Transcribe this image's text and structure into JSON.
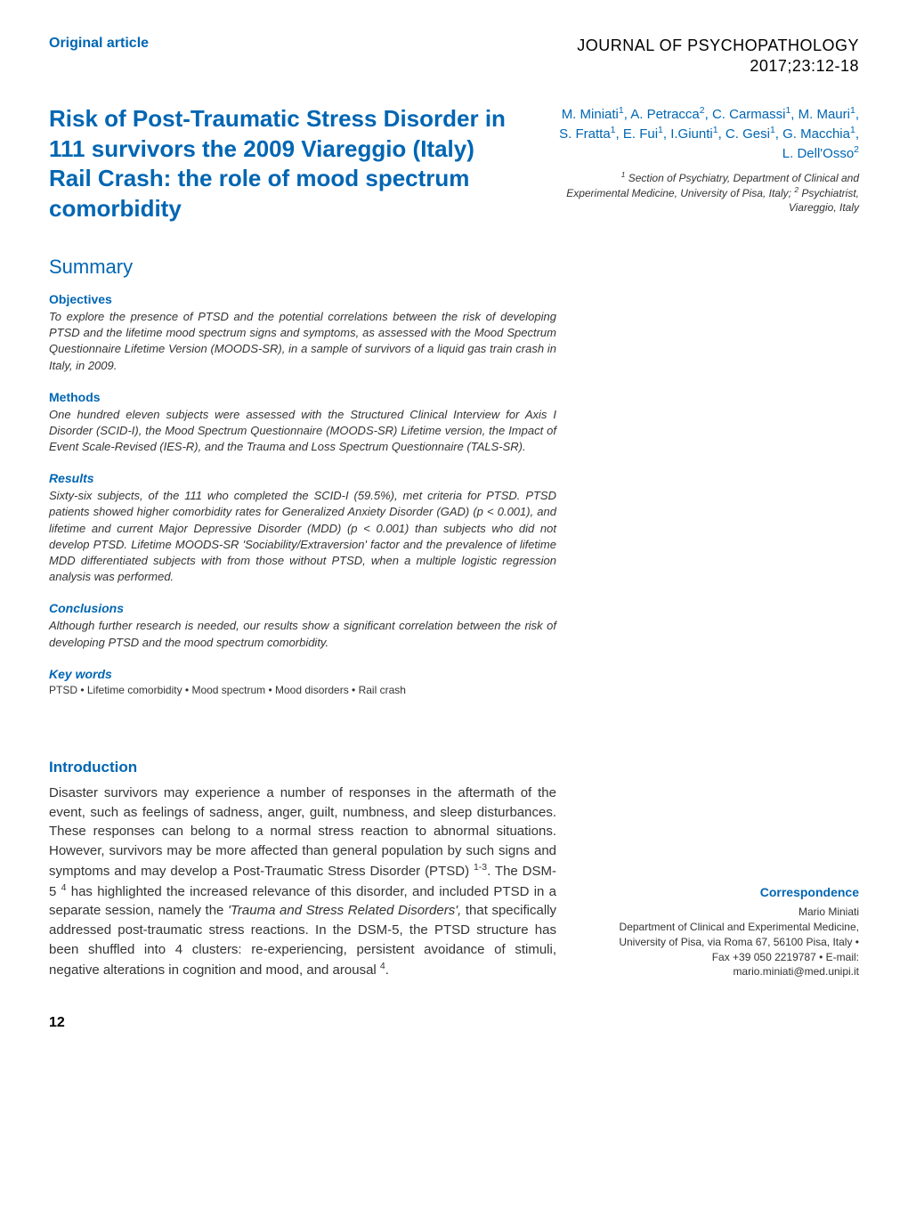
{
  "header": {
    "article_type": "Original article",
    "journal_name": "JOURNAL OF PSYCHOPATHOLOGY",
    "journal_issue": "2017;23:12-18"
  },
  "title": "Risk of Post-Traumatic Stress Disorder in 111 survivors the 2009 Viareggio (Italy) Rail Crash: the role of mood spectrum comorbidity",
  "authors": "M. Miniati¹, A. Petracca², C. Carmassi¹, M. Mauri¹, S. Fratta¹, E. Fui¹, I.Giunti¹, C. Gesi¹, G. Macchia¹, L. Dell'Osso²",
  "affiliations": "¹ Section of Psychiatry, Department of Clinical and Experimental Medicine, University of Pisa, Italy; ² Psychiatrist, Viareggio, Italy",
  "summary": {
    "heading": "Summary",
    "objectives": {
      "title": "Objectives",
      "text": "To explore the presence of PTSD and the potential correlations between the risk of developing PTSD and the lifetime mood spectrum signs and symptoms, as assessed with the Mood Spectrum Questionnaire Lifetime Version (MOODS-SR), in a sample of survivors of a liquid gas train crash in Italy, in 2009."
    },
    "methods": {
      "title": "Methods",
      "text": "One hundred eleven subjects were assessed with the Structured Clinical Interview for Axis I Disorder (SCID-I), the Mood Spectrum Questionnaire (MOODS-SR) Lifetime version, the Impact of Event Scale-Revised (IES-R), and the Trauma and Loss Spectrum Questionnaire (TALS-SR)."
    },
    "results": {
      "title": "Results",
      "text": "Sixty-six subjects, of the 111 who completed the SCID-I (59.5%), met criteria for PTSD. PTSD patients showed higher comorbidity rates for Generalized Anxiety Disorder (GAD) (p < 0.001), and lifetime and current Major Depressive Disorder (MDD) (p < 0.001) than subjects who did not develop PTSD. Lifetime MOODS-SR 'Sociability/Extraversion' factor and the prevalence of lifetime MDD differentiated subjects with from those without PTSD, when a multiple logistic regression analysis was performed."
    },
    "conclusions": {
      "title": "Conclusions",
      "text": "Although further research is needed, our results show a significant correlation between the risk of developing PTSD and the mood spectrum comorbidity."
    },
    "keywords": {
      "title": "Key words",
      "list": "PTSD • Lifetime comorbidity • Mood spectrum • Mood disorders • Rail crash"
    }
  },
  "introduction": {
    "title": "Introduction",
    "text_part1": "Disaster survivors may experience a number of responses in the aftermath of the event, such as feelings of sadness, anger, guilt, numbness, and sleep disturbances. These responses can belong to a normal stress reaction to abnormal situations. However, survivors may be more affected than general population by such signs and symptoms and may develop a Post-Traumatic Stress Disorder (PTSD) ",
    "sup1": "1-3",
    "text_part2": ". The DSM-5 ",
    "sup2": "4",
    "text_part3": " has highlighted the increased relevance of this disorder, and included PTSD in a separate session, namely the ",
    "italic_phrase": "'Trauma and Stress Related Disorders',",
    "text_part4": " that specifically addressed post-traumatic stress reactions. In the DSM-5, the PTSD structure has been shuffled into 4 clusters: re-experiencing, persistent avoidance of stimuli, negative alterations in cognition and mood, and arousal ",
    "sup3": "4",
    "text_part5": "."
  },
  "correspondence": {
    "title": "Correspondence",
    "name": "Mario Miniati",
    "address": "Department of Clinical and Experimental Medicine, University of Pisa, via Roma 67, 56100 Pisa, Italy • Fax +39 050 2219787 • E-mail: mario.miniati@med.unipi.it"
  },
  "page_number": "12",
  "colors": {
    "primary_blue": "#0066b3",
    "text_gray": "#333333"
  }
}
